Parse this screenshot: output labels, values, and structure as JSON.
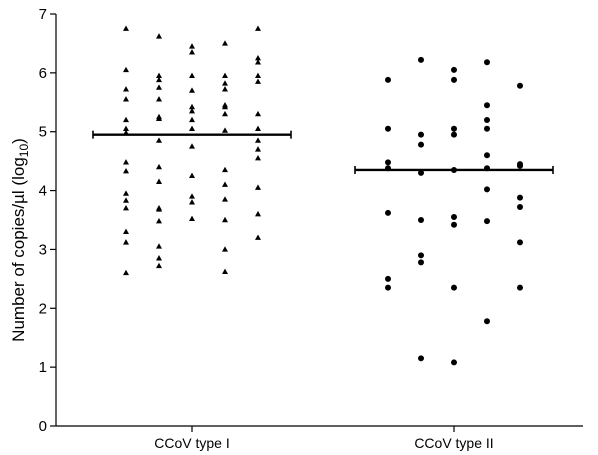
{
  "chart_data": {
    "type": "scatter",
    "title": "",
    "xlabel": "",
    "ylabel": "Number of copies/µl (log",
    "ylabel_subscript": "10",
    "ylabel_suffix": ")",
    "ylim": [
      0,
      7
    ],
    "yticks": [
      "0",
      "1",
      "2",
      "3",
      "4",
      "5",
      "6",
      "7"
    ],
    "categories": [
      "CCoV type I",
      "CCoV type II"
    ],
    "grid": false,
    "legend": "none",
    "series": [
      {
        "category": "CCoV type I",
        "marker": "triangle",
        "median": 4.95,
        "columns": [
          [
            6.75,
            6.05,
            5.72,
            5.55,
            5.2,
            5.05,
            4.98,
            4.48,
            4.33,
            3.95,
            3.83,
            3.7,
            3.3,
            3.12,
            2.6
          ],
          [
            6.62,
            5.95,
            5.88,
            5.75,
            5.55,
            5.25,
            5.22,
            4.85,
            4.4,
            4.15,
            3.7,
            3.68,
            3.48,
            3.05,
            2.85,
            2.72
          ],
          [
            6.45,
            6.35,
            5.95,
            5.7,
            5.42,
            5.35,
            5.2,
            5.05,
            4.75,
            4.25,
            3.9,
            3.8,
            3.52
          ],
          [
            6.5,
            5.95,
            5.82,
            5.72,
            5.45,
            5.42,
            5.3,
            5.02,
            4.35,
            4.1,
            3.85,
            3.5,
            3.0,
            2.62
          ],
          [
            6.75,
            6.25,
            6.18,
            5.95,
            5.85,
            5.3,
            5.05,
            4.85,
            4.7,
            4.55,
            4.05,
            3.6,
            3.2
          ]
        ]
      },
      {
        "category": "CCoV type II",
        "marker": "circle",
        "median": 4.35,
        "columns": [
          [
            5.88,
            5.05,
            4.48,
            4.38,
            3.62,
            2.5,
            2.35
          ],
          [
            6.22,
            4.95,
            4.78,
            4.3,
            3.5,
            2.9,
            2.78,
            1.15
          ],
          [
            6.05,
            5.88,
            5.05,
            4.95,
            4.35,
            3.55,
            3.42,
            2.35,
            1.08
          ],
          [
            6.18,
            5.45,
            5.2,
            5.05,
            4.6,
            4.38,
            4.02,
            3.48,
            1.78
          ],
          [
            5.78,
            4.45,
            4.42,
            3.88,
            3.72,
            3.12,
            2.35
          ]
        ]
      }
    ]
  }
}
